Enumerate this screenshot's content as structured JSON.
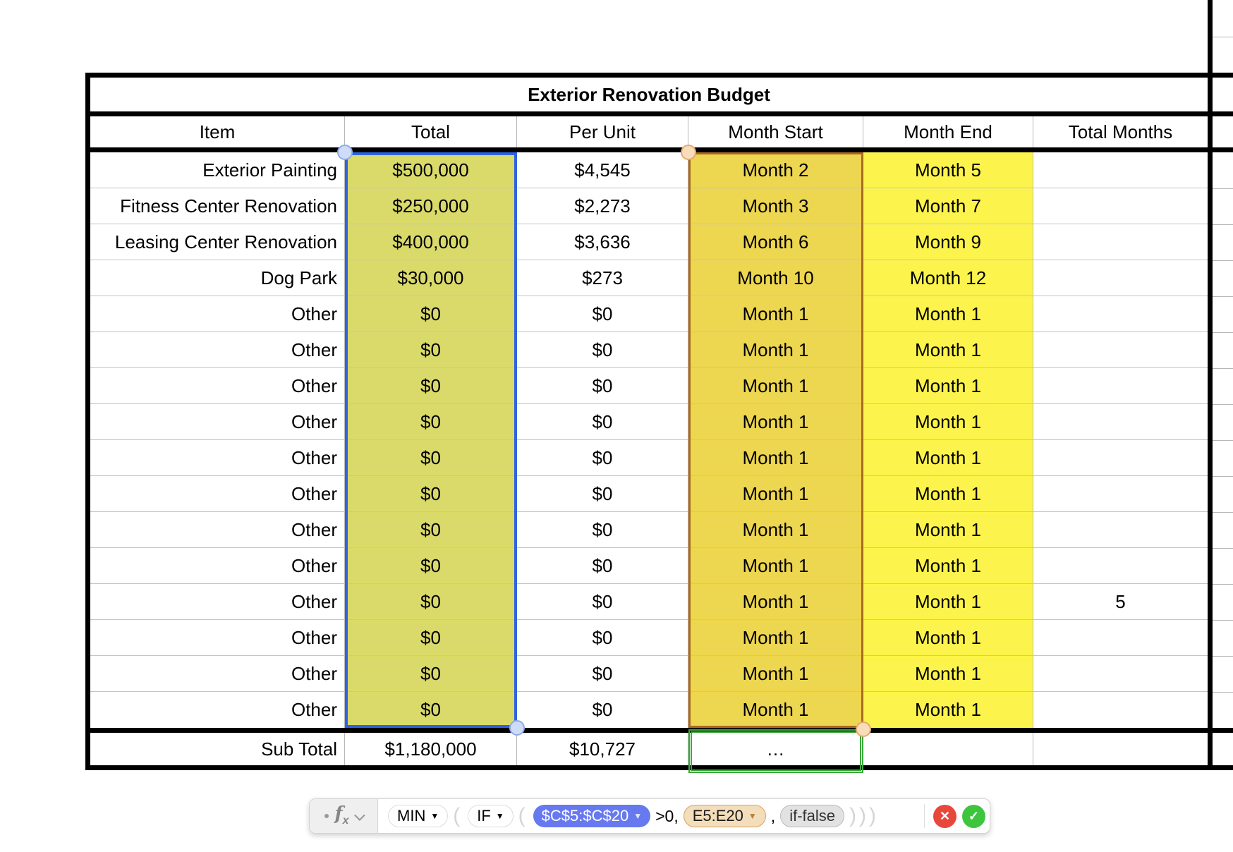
{
  "table": {
    "title": "Exterior Renovation Budget",
    "columns": [
      "Item",
      "Total",
      "Per Unit",
      "Month Start",
      "Month End",
      "Total Months"
    ],
    "rows": [
      {
        "item": "Exterior Painting",
        "total": "$500,000",
        "per_unit": "$4,545",
        "month_start": "Month 2",
        "month_end": "Month 5",
        "total_months": ""
      },
      {
        "item": "Fitness Center Renovation",
        "total": "$250,000",
        "per_unit": "$2,273",
        "month_start": "Month 3",
        "month_end": "Month 7",
        "total_months": ""
      },
      {
        "item": "Leasing Center Renovation",
        "total": "$400,000",
        "per_unit": "$3,636",
        "month_start": "Month 6",
        "month_end": "Month 9",
        "total_months": ""
      },
      {
        "item": "Dog Park",
        "total": "$30,000",
        "per_unit": "$273",
        "month_start": "Month 10",
        "month_end": "Month 12",
        "total_months": ""
      },
      {
        "item": "Other",
        "total": "$0",
        "per_unit": "$0",
        "month_start": "Month 1",
        "month_end": "Month 1",
        "total_months": ""
      },
      {
        "item": "Other",
        "total": "$0",
        "per_unit": "$0",
        "month_start": "Month 1",
        "month_end": "Month 1",
        "total_months": ""
      },
      {
        "item": "Other",
        "total": "$0",
        "per_unit": "$0",
        "month_start": "Month 1",
        "month_end": "Month 1",
        "total_months": ""
      },
      {
        "item": "Other",
        "total": "$0",
        "per_unit": "$0",
        "month_start": "Month 1",
        "month_end": "Month 1",
        "total_months": ""
      },
      {
        "item": "Other",
        "total": "$0",
        "per_unit": "$0",
        "month_start": "Month 1",
        "month_end": "Month 1",
        "total_months": ""
      },
      {
        "item": "Other",
        "total": "$0",
        "per_unit": "$0",
        "month_start": "Month 1",
        "month_end": "Month 1",
        "total_months": ""
      },
      {
        "item": "Other",
        "total": "$0",
        "per_unit": "$0",
        "month_start": "Month 1",
        "month_end": "Month 1",
        "total_months": ""
      },
      {
        "item": "Other",
        "total": "$0",
        "per_unit": "$0",
        "month_start": "Month 1",
        "month_end": "Month 1",
        "total_months": ""
      },
      {
        "item": "Other",
        "total": "$0",
        "per_unit": "$0",
        "month_start": "Month 1",
        "month_end": "Month 1",
        "total_months": "5"
      },
      {
        "item": "Other",
        "total": "$0",
        "per_unit": "$0",
        "month_start": "Month 1",
        "month_end": "Month 1",
        "total_months": ""
      },
      {
        "item": "Other",
        "total": "$0",
        "per_unit": "$0",
        "month_start": "Month 1",
        "month_end": "Month 1",
        "total_months": ""
      },
      {
        "item": "Other",
        "total": "$0",
        "per_unit": "$0",
        "month_start": "Month 1",
        "month_end": "Month 1",
        "total_months": ""
      }
    ],
    "subtotal": {
      "label": "Sub Total",
      "total": "$1,180,000",
      "per_unit": "$10,727",
      "month_start": "…",
      "month_end": "",
      "total_months": ""
    }
  },
  "formula_bar": {
    "fx_label": "f",
    "fx_sub": "x",
    "tokens": [
      {
        "type": "function",
        "label": "MIN"
      },
      {
        "type": "paren",
        "label": "("
      },
      {
        "type": "function",
        "label": "IF"
      },
      {
        "type": "paren",
        "label": "("
      },
      {
        "type": "ref-blue",
        "label": "$C$5:$C$20"
      },
      {
        "type": "text",
        "label": ">0,"
      },
      {
        "type": "ref-orange",
        "label": "E5:E20"
      },
      {
        "type": "text",
        "label": ","
      },
      {
        "type": "placeholder",
        "label": "if-false"
      },
      {
        "type": "paren",
        "label": ")))"
      }
    ],
    "cancel_icon": "✕",
    "accept_icon": "✓"
  },
  "colors": {
    "selected_total_fill": "#DADA6B",
    "month_start_fill": "#EDD650",
    "month_end_fill": "#FCF44C",
    "selection_blue": "#2D63E2",
    "selection_orange": "#A96A1E",
    "formula_target_green": "#3BA83B",
    "ref_token_blue": "#6779EF",
    "ref_token_tan_bg": "#F4DDBB",
    "ref_token_tan_border": "#D9A05B",
    "placeholder_gray_bg": "#E2E2E2",
    "cancel_red": "#E8473B",
    "accept_green": "#3EC53E"
  }
}
